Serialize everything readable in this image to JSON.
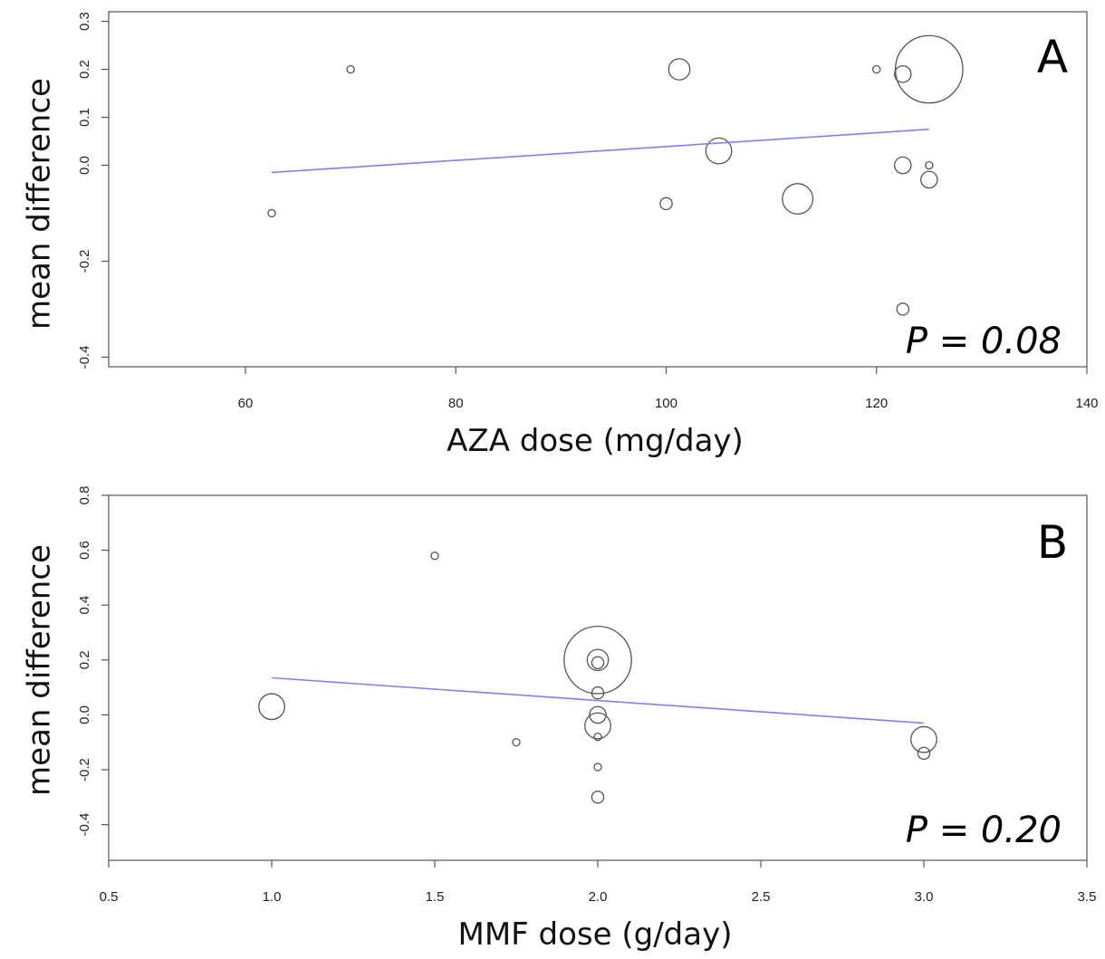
{
  "chart_data": [
    {
      "type": "scatter",
      "panel_label": "A",
      "annotation": "P = 0.08",
      "xlabel": "AZA dose (mg/day)",
      "ylabel": "mean difference",
      "xlim": [
        47,
        140
      ],
      "ylim": [
        -0.42,
        0.32
      ],
      "xticks": [
        60,
        80,
        100,
        120,
        140
      ],
      "xtick_labels": [
        "60",
        "80",
        "100",
        "120",
        "140"
      ],
      "yticks": [
        -0.4,
        -0.2,
        0.0,
        0.1,
        0.2,
        0.3
      ],
      "ytick_labels": [
        "-0.4",
        "-0.2",
        "0.0",
        "0.1",
        "0.2",
        "0.3"
      ],
      "grid": false,
      "points": [
        {
          "x": 62.5,
          "y": -0.1,
          "weight": 1
        },
        {
          "x": 70,
          "y": 0.2,
          "weight": 1
        },
        {
          "x": 100,
          "y": -0.08,
          "weight": 2
        },
        {
          "x": 101.25,
          "y": 0.2,
          "weight": 4
        },
        {
          "x": 105,
          "y": 0.03,
          "weight": 5
        },
        {
          "x": 112.5,
          "y": -0.07,
          "weight": 6
        },
        {
          "x": 120,
          "y": 0.2,
          "weight": 1
        },
        {
          "x": 122.5,
          "y": 0.19,
          "weight": 3
        },
        {
          "x": 122.5,
          "y": 0.0,
          "weight": 3
        },
        {
          "x": 122.5,
          "y": -0.3,
          "weight": 2
        },
        {
          "x": 125,
          "y": 0.2,
          "weight": 14
        },
        {
          "x": 125,
          "y": 0.0,
          "weight": 1
        },
        {
          "x": 125,
          "y": -0.03,
          "weight": 3
        }
      ],
      "regression": {
        "x": [
          62.5,
          125
        ],
        "y": [
          -0.015,
          0.075
        ],
        "color": "#8080ff"
      },
      "point_color": "#555555"
    },
    {
      "type": "scatter",
      "panel_label": "B",
      "annotation": "P = 0.20",
      "xlabel": "MMF dose (g/day)",
      "ylabel": "mean difference",
      "xlim": [
        0.5,
        3.5
      ],
      "ylim": [
        -0.53,
        0.8
      ],
      "xticks": [
        0.5,
        1.0,
        1.5,
        2.0,
        2.5,
        3.0,
        3.5
      ],
      "xtick_labels": [
        "0.5",
        "1.0",
        "1.5",
        "2.0",
        "2.5",
        "3.0",
        "3.5"
      ],
      "yticks": [
        -0.4,
        -0.2,
        0.0,
        0.2,
        0.4,
        0.6,
        0.8
      ],
      "ytick_labels": [
        "-0.4",
        "-0.2",
        "0.0",
        "0.2",
        "0.4",
        "0.6",
        "0.8"
      ],
      "grid": false,
      "points": [
        {
          "x": 1.0,
          "y": 0.03,
          "weight": 5
        },
        {
          "x": 1.5,
          "y": 0.58,
          "weight": 1
        },
        {
          "x": 1.75,
          "y": -0.1,
          "weight": 1
        },
        {
          "x": 2.0,
          "y": 0.2,
          "weight": 14
        },
        {
          "x": 2.0,
          "y": 0.2,
          "weight": 4
        },
        {
          "x": 2.0,
          "y": 0.19,
          "weight": 2
        },
        {
          "x": 2.0,
          "y": 0.08,
          "weight": 2
        },
        {
          "x": 2.0,
          "y": 0.0,
          "weight": 3
        },
        {
          "x": 2.0,
          "y": -0.04,
          "weight": 5
        },
        {
          "x": 2.0,
          "y": -0.08,
          "weight": 1
        },
        {
          "x": 2.0,
          "y": -0.19,
          "weight": 1
        },
        {
          "x": 2.0,
          "y": -0.3,
          "weight": 2
        },
        {
          "x": 3.0,
          "y": -0.09,
          "weight": 5
        },
        {
          "x": 3.0,
          "y": -0.14,
          "weight": 2
        }
      ],
      "regression": {
        "x": [
          1.0,
          3.0
        ],
        "y": [
          0.135,
          -0.03
        ],
        "color": "#8080ff"
      },
      "point_color": "#555555"
    }
  ]
}
